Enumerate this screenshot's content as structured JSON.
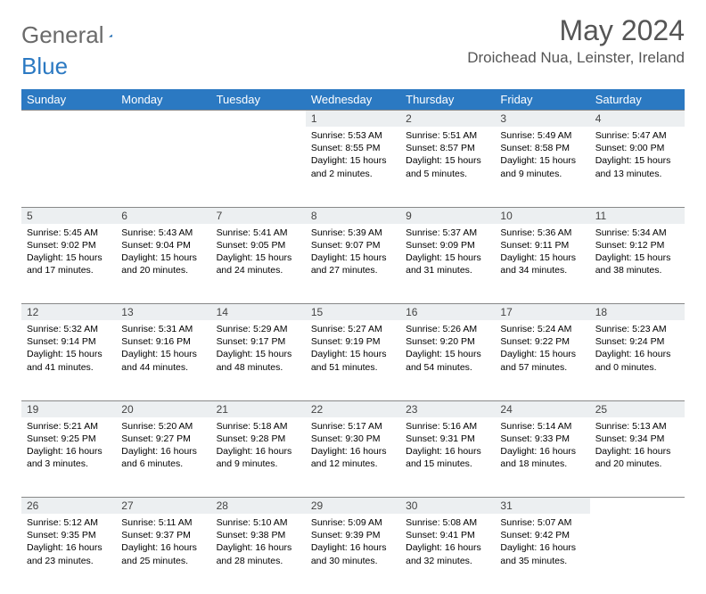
{
  "logo": {
    "text1": "General",
    "text2": "Blue",
    "color1": "#6a6a6a",
    "color2": "#2b79c2"
  },
  "title": "May 2024",
  "location": "Droichead Nua, Leinster, Ireland",
  "header_bg": "#2b79c2",
  "daynum_bg": "#eceff1",
  "dow": [
    "Sunday",
    "Monday",
    "Tuesday",
    "Wednesday",
    "Thursday",
    "Friday",
    "Saturday"
  ],
  "weeks": [
    [
      null,
      null,
      null,
      {
        "n": "1",
        "sr": "5:53 AM",
        "ss": "8:55 PM",
        "dh": "15",
        "dm": "2"
      },
      {
        "n": "2",
        "sr": "5:51 AM",
        "ss": "8:57 PM",
        "dh": "15",
        "dm": "5"
      },
      {
        "n": "3",
        "sr": "5:49 AM",
        "ss": "8:58 PM",
        "dh": "15",
        "dm": "9"
      },
      {
        "n": "4",
        "sr": "5:47 AM",
        "ss": "9:00 PM",
        "dh": "15",
        "dm": "13"
      }
    ],
    [
      {
        "n": "5",
        "sr": "5:45 AM",
        "ss": "9:02 PM",
        "dh": "15",
        "dm": "17"
      },
      {
        "n": "6",
        "sr": "5:43 AM",
        "ss": "9:04 PM",
        "dh": "15",
        "dm": "20"
      },
      {
        "n": "7",
        "sr": "5:41 AM",
        "ss": "9:05 PM",
        "dh": "15",
        "dm": "24"
      },
      {
        "n": "8",
        "sr": "5:39 AM",
        "ss": "9:07 PM",
        "dh": "15",
        "dm": "27"
      },
      {
        "n": "9",
        "sr": "5:37 AM",
        "ss": "9:09 PM",
        "dh": "15",
        "dm": "31"
      },
      {
        "n": "10",
        "sr": "5:36 AM",
        "ss": "9:11 PM",
        "dh": "15",
        "dm": "34"
      },
      {
        "n": "11",
        "sr": "5:34 AM",
        "ss": "9:12 PM",
        "dh": "15",
        "dm": "38"
      }
    ],
    [
      {
        "n": "12",
        "sr": "5:32 AM",
        "ss": "9:14 PM",
        "dh": "15",
        "dm": "41"
      },
      {
        "n": "13",
        "sr": "5:31 AM",
        "ss": "9:16 PM",
        "dh": "15",
        "dm": "44"
      },
      {
        "n": "14",
        "sr": "5:29 AM",
        "ss": "9:17 PM",
        "dh": "15",
        "dm": "48"
      },
      {
        "n": "15",
        "sr": "5:27 AM",
        "ss": "9:19 PM",
        "dh": "15",
        "dm": "51"
      },
      {
        "n": "16",
        "sr": "5:26 AM",
        "ss": "9:20 PM",
        "dh": "15",
        "dm": "54"
      },
      {
        "n": "17",
        "sr": "5:24 AM",
        "ss": "9:22 PM",
        "dh": "15",
        "dm": "57"
      },
      {
        "n": "18",
        "sr": "5:23 AM",
        "ss": "9:24 PM",
        "dh": "16",
        "dm": "0"
      }
    ],
    [
      {
        "n": "19",
        "sr": "5:21 AM",
        "ss": "9:25 PM",
        "dh": "16",
        "dm": "3"
      },
      {
        "n": "20",
        "sr": "5:20 AM",
        "ss": "9:27 PM",
        "dh": "16",
        "dm": "6"
      },
      {
        "n": "21",
        "sr": "5:18 AM",
        "ss": "9:28 PM",
        "dh": "16",
        "dm": "9"
      },
      {
        "n": "22",
        "sr": "5:17 AM",
        "ss": "9:30 PM",
        "dh": "16",
        "dm": "12"
      },
      {
        "n": "23",
        "sr": "5:16 AM",
        "ss": "9:31 PM",
        "dh": "16",
        "dm": "15"
      },
      {
        "n": "24",
        "sr": "5:14 AM",
        "ss": "9:33 PM",
        "dh": "16",
        "dm": "18"
      },
      {
        "n": "25",
        "sr": "5:13 AM",
        "ss": "9:34 PM",
        "dh": "16",
        "dm": "20"
      }
    ],
    [
      {
        "n": "26",
        "sr": "5:12 AM",
        "ss": "9:35 PM",
        "dh": "16",
        "dm": "23"
      },
      {
        "n": "27",
        "sr": "5:11 AM",
        "ss": "9:37 PM",
        "dh": "16",
        "dm": "25"
      },
      {
        "n": "28",
        "sr": "5:10 AM",
        "ss": "9:38 PM",
        "dh": "16",
        "dm": "28"
      },
      {
        "n": "29",
        "sr": "5:09 AM",
        "ss": "9:39 PM",
        "dh": "16",
        "dm": "30"
      },
      {
        "n": "30",
        "sr": "5:08 AM",
        "ss": "9:41 PM",
        "dh": "16",
        "dm": "32"
      },
      {
        "n": "31",
        "sr": "5:07 AM",
        "ss": "9:42 PM",
        "dh": "16",
        "dm": "35"
      },
      null
    ]
  ],
  "labels": {
    "sunrise": "Sunrise:",
    "sunset": "Sunset:",
    "daylight": "Daylight:",
    "hours": "hours",
    "and": "and",
    "minutes": "minutes."
  }
}
